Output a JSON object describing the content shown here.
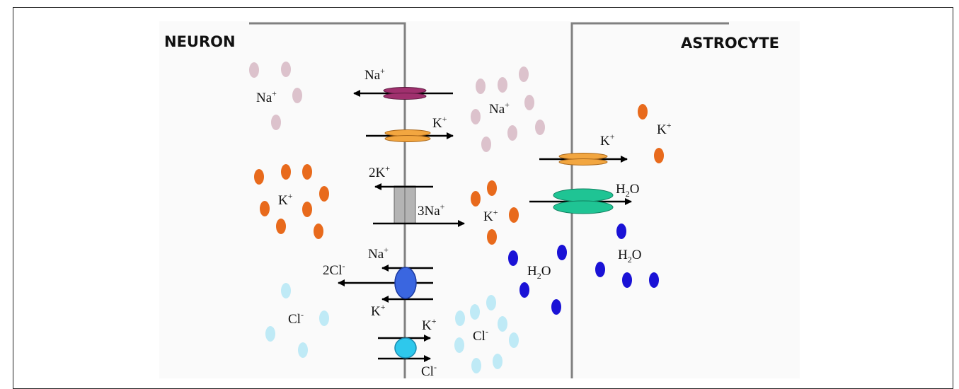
{
  "diagram": {
    "titles": {
      "neuron": "NEURON",
      "astrocyte": "ASTROCYTE"
    },
    "labels": {
      "na_channel": {
        "base": "Na",
        "sup": "+"
      },
      "k_channel": {
        "base": "K",
        "sup": "+"
      },
      "pump_k": {
        "base": "2K",
        "sup": "+"
      },
      "pump_na": {
        "base": "3Na",
        "sup": "+"
      },
      "cotrans_na": {
        "base": "Na",
        "sup": "+"
      },
      "cotrans_cl": {
        "base": "2Cl",
        "sup": "-"
      },
      "cotrans_k": {
        "base": "K",
        "sup": "+"
      },
      "kcc_k": {
        "base": "K",
        "sup": "+"
      },
      "kcc_cl": {
        "base": "Cl",
        "sup": "-"
      },
      "neuron_na": {
        "base": "Na",
        "sup": "+"
      },
      "neuron_k": {
        "base": "K",
        "sup": "+"
      },
      "neuron_cl": {
        "base": "Cl",
        "sup": "-"
      },
      "ecs_na": {
        "base": "Na",
        "sup": "+"
      },
      "ecs_k": {
        "base": "K",
        "sup": "+"
      },
      "ecs_h2o": {
        "base": "H",
        "sub": "2",
        "tail": "O"
      },
      "ecs_cl": {
        "base": "Cl",
        "sup": "-"
      },
      "astro_k_channel": {
        "base": "K",
        "sup": "+"
      },
      "astro_h2o_channel": {
        "base": "H",
        "sub": "2",
        "tail": "O"
      },
      "astro_k": {
        "base": "K",
        "sup": "+"
      },
      "astro_h2o": {
        "base": "H",
        "sub": "2",
        "tail": "O"
      }
    },
    "colors": {
      "sodium": "#dcc2cc",
      "potassium": "#e86a1c",
      "chloride": "#bfeaf6",
      "water": "#1a12d6",
      "membrane": "#808080",
      "na_channel": "#a0306e",
      "k_channel": "#f2a640",
      "pump": "#b4b4b4",
      "cotransporter": "#3a66e0",
      "kcc": "#2ec8ec",
      "aquaporin": "#1fc494"
    }
  }
}
